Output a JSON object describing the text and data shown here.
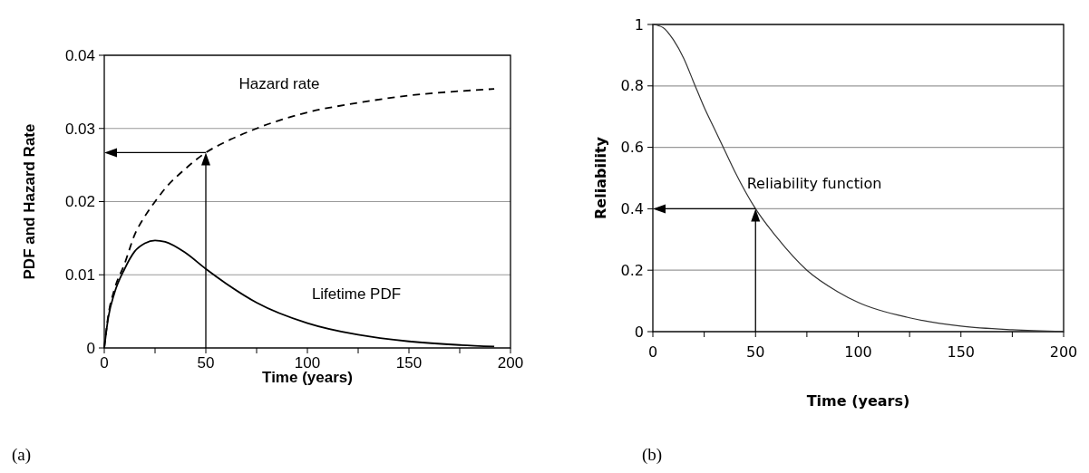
{
  "chart_data": [
    {
      "type": "line",
      "xlabel": "Time (years)",
      "ylabel": "PDF and Hazard Rate",
      "xlim": [
        0,
        200
      ],
      "xticks": [
        0,
        50,
        100,
        150,
        200
      ],
      "ylim": [
        0,
        0.04
      ],
      "yticks": [
        0,
        0.01,
        0.02,
        0.03,
        0.04
      ],
      "grid": "y",
      "annotations": [
        "Hazard rate",
        "Lifetime PDF",
        "(a)"
      ],
      "series": [
        {
          "color": "#000000",
          "line_style": "dashed",
          "x": [
            0,
            2,
            5,
            10,
            15,
            20,
            25,
            30,
            40,
            50,
            60,
            75,
            100,
            125,
            150,
            175,
            192
          ],
          "values": [
            0,
            0.0045,
            0.008,
            0.0115,
            0.0155,
            0.018,
            0.02,
            0.0218,
            0.0245,
            0.0267,
            0.0282,
            0.03,
            0.0322,
            0.0335,
            0.0345,
            0.0351,
            0.0354
          ]
        },
        {
          "color": "#000000",
          "line_style": "solid",
          "x": [
            0,
            2,
            5,
            10,
            15,
            20,
            25,
            30,
            40,
            50,
            60,
            75,
            100,
            125,
            150,
            175,
            192
          ],
          "values": [
            0,
            0.0042,
            0.0075,
            0.0108,
            0.0132,
            0.0143,
            0.0147,
            0.0145,
            0.013,
            0.0108,
            0.0088,
            0.0062,
            0.0034,
            0.0018,
            0.0009,
            0.0004,
            0.0002
          ]
        }
      ]
    },
    {
      "type": "line",
      "xlabel": "Time (years)",
      "ylabel": "Reliability",
      "xlim": [
        0,
        200
      ],
      "xticks": [
        0,
        50,
        100,
        150,
        200
      ],
      "ylim": [
        0,
        1
      ],
      "yticks": [
        0,
        0.2,
        0.4,
        0.6,
        0.8,
        1
      ],
      "grid": "y",
      "annotations": [
        "Reliability function",
        "(b)"
      ],
      "series": [
        {
          "color": "#333333",
          "line_style": "solid",
          "x": [
            0,
            5,
            10,
            15,
            20,
            25,
            30,
            35,
            40,
            50,
            60,
            75,
            90,
            100,
            125,
            150,
            175,
            200
          ],
          "values": [
            1,
            0.99,
            0.95,
            0.89,
            0.81,
            0.73,
            0.66,
            0.59,
            0.52,
            0.4,
            0.31,
            0.2,
            0.13,
            0.095,
            0.045,
            0.018,
            0.006,
            0
          ]
        }
      ]
    }
  ]
}
